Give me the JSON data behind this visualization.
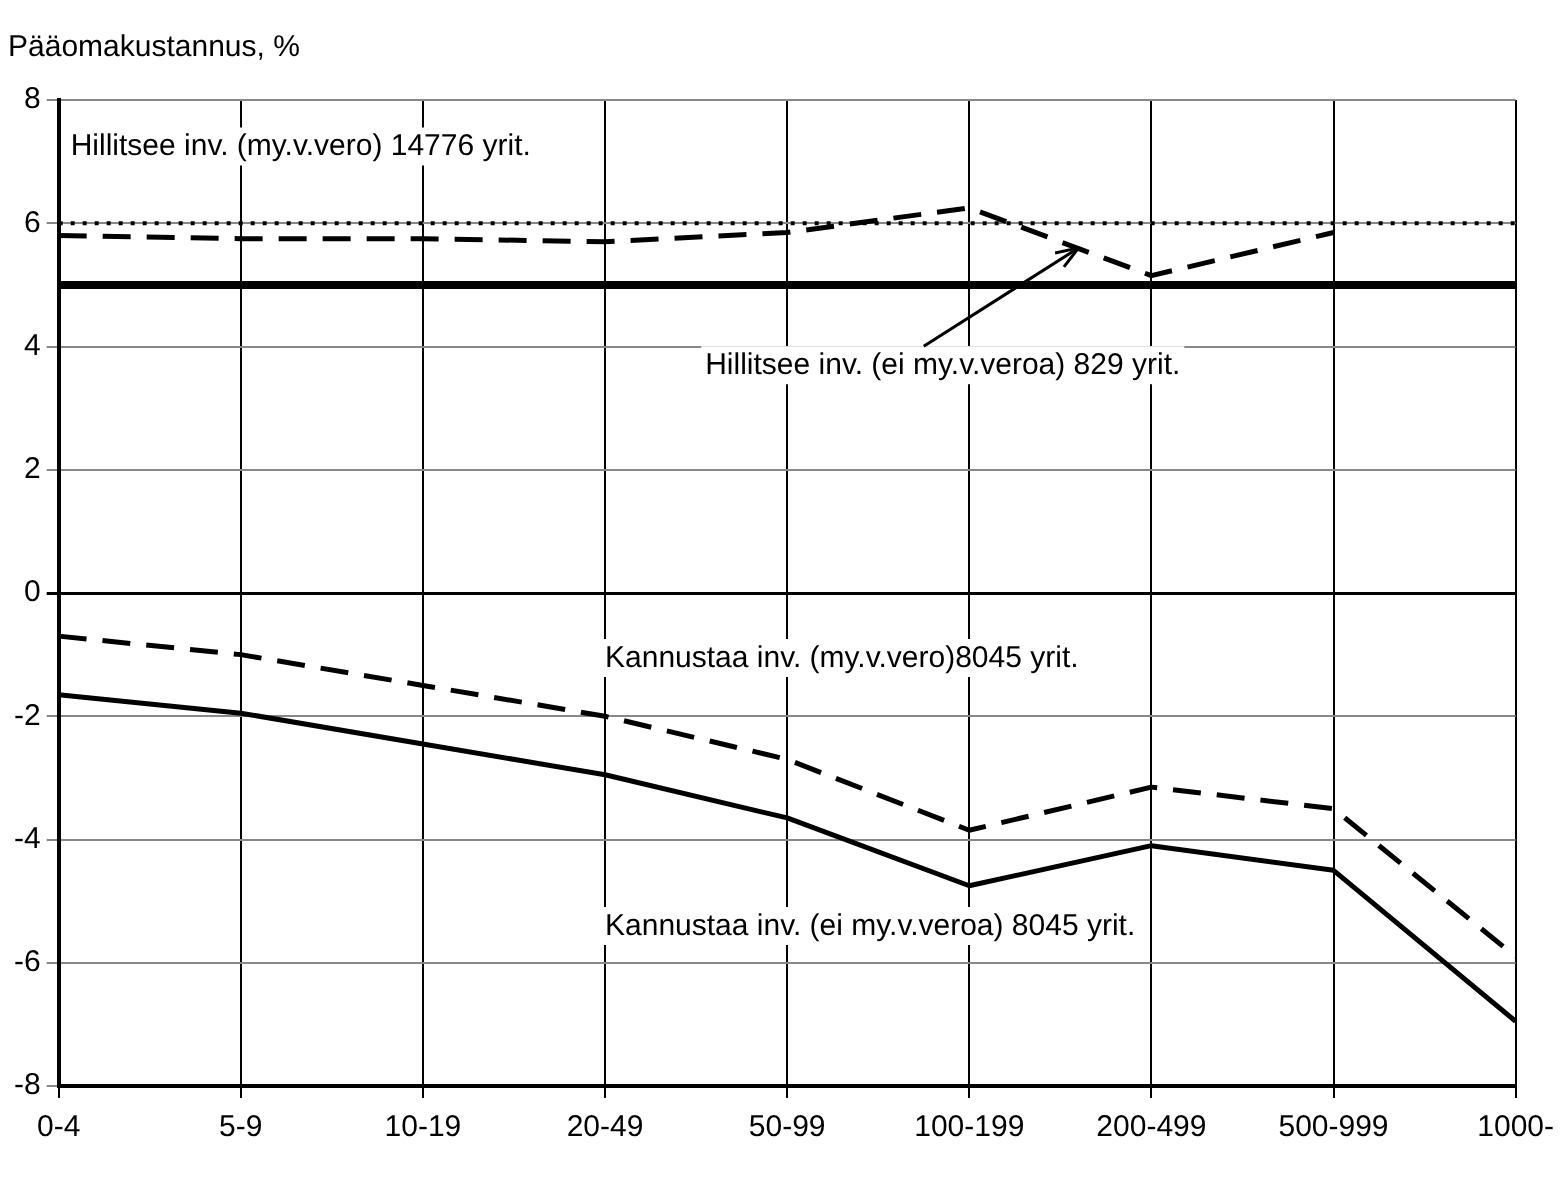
{
  "chart_data": {
    "type": "line",
    "ylabel": "Pääomakustannus, %",
    "categories": [
      "0-4",
      "5-9",
      "10-19",
      "20-49",
      "50-99",
      "100-199",
      "200-499",
      "500-999",
      "1000-"
    ],
    "series": [
      {
        "name": "Hillitsee inv. (my.v.vero) 14776 yrit.",
        "color": "#000000",
        "line_style": "dotted",
        "values": [
          6.0,
          6.0,
          6.0,
          6.0,
          6.0,
          6.0,
          6.0,
          6.0,
          6.0
        ]
      },
      {
        "name": "Hillitsee inv. (ei my.v.veroa) 829 yrit.",
        "color": "#000000",
        "line_style": "dashed",
        "values": [
          5.8,
          5.75,
          5.75,
          5.7,
          5.85,
          6.25,
          5.15,
          5.85,
          null
        ]
      },
      {
        "name": "Kannustaa inv. (my.v.vero)8045 yrit.",
        "color": "#000000",
        "line_style": "dashed",
        "values": [
          -0.7,
          -1.0,
          -1.5,
          -2.0,
          -2.7,
          -3.85,
          -3.15,
          -3.5,
          -5.9
        ]
      },
      {
        "name": "Kannustaa inv. (ei my.v.veroa) 8045 yrit.",
        "color": "#000000",
        "line_style": "solid",
        "values": [
          -1.65,
          -1.95,
          -2.45,
          -2.95,
          -3.65,
          -4.75,
          -4.1,
          -4.5,
          -6.95
        ]
      }
    ],
    "ref_lines": [
      {
        "axis": "y",
        "value": 5,
        "color": "#000000",
        "line_style": "solid"
      }
    ],
    "ylim": [
      -8,
      8
    ],
    "yticks": [
      -8,
      -6,
      -4,
      -2,
      0,
      2,
      4,
      6,
      8
    ],
    "grid": true,
    "legend": false,
    "marker": "none"
  }
}
